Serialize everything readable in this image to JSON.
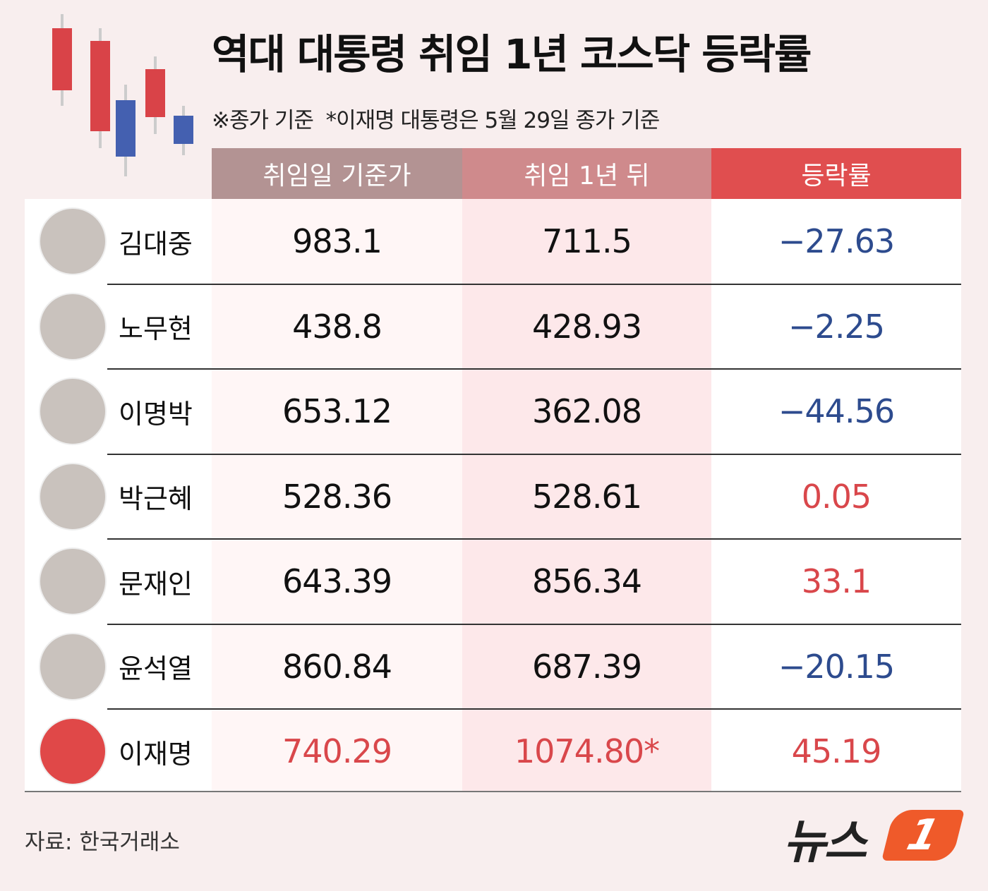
{
  "header": {
    "title": "역대 대통령 취임 1년 코스닥 등락률",
    "subtitle": "※종가 기준  *이재명 대통령은 5월 29일 종가 기준"
  },
  "table": {
    "columns": [
      "취임일 기준가",
      "취임 1년 뒤",
      "등락률"
    ],
    "column_colors": [
      "#b39393",
      "#cf8a8c",
      "#e04e4f"
    ],
    "rows": [
      {
        "name": "김대중",
        "base": "983.1",
        "after": "711.5",
        "change": "−27.63",
        "value_color": "#111111",
        "change_color": "#2d4b8e"
      },
      {
        "name": "노무현",
        "base": "438.8",
        "after": "428.93",
        "change": "−2.25",
        "value_color": "#111111",
        "change_color": "#2d4b8e"
      },
      {
        "name": "이명박",
        "base": "653.12",
        "after": "362.08",
        "change": "−44.56",
        "value_color": "#111111",
        "change_color": "#2d4b8e"
      },
      {
        "name": "박근혜",
        "base": "528.36",
        "after": "528.61",
        "change": "0.05",
        "value_color": "#111111",
        "change_color": "#d9474b"
      },
      {
        "name": "문재인",
        "base": "643.39",
        "after": "856.34",
        "change": "33.1",
        "value_color": "#111111",
        "change_color": "#d9474b"
      },
      {
        "name": "윤석열",
        "base": "860.84",
        "after": "687.39",
        "change": "−20.15",
        "value_color": "#111111",
        "change_color": "#2d4b8e"
      },
      {
        "name": "이재명",
        "base": "740.29",
        "after": "1074.80*",
        "change": "45.19",
        "value_color": "#d9474b",
        "change_color": "#d9474b"
      }
    ]
  },
  "footer": {
    "source": "자료: 한국거래소",
    "logo_text": "뉴스",
    "logo_number": "1"
  }
}
